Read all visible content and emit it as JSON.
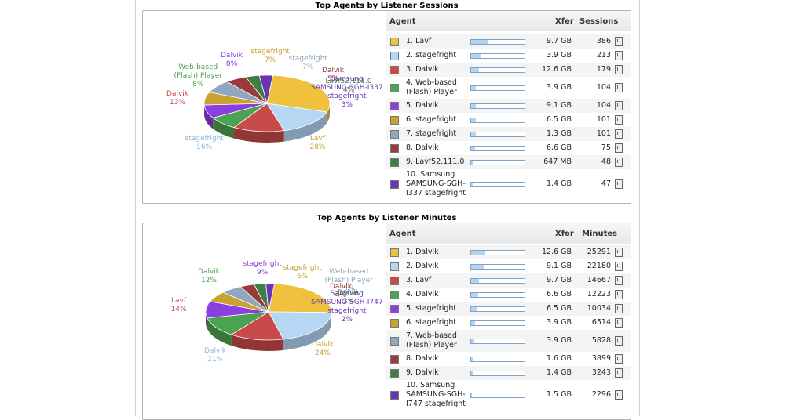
{
  "colors": {
    "yellow": "#f0c13d",
    "lightblue": "#b6d7f4",
    "red": "#c94a4a",
    "green": "#4ca34f",
    "purple": "#8a3fe0",
    "gold": "#c9a232",
    "steel": "#8fa7bf",
    "maroon": "#9b3a3a",
    "darkgreen": "#3e7f41",
    "violet": "#6a35b5"
  },
  "chart_data": [
    {
      "type": "pie",
      "title": "Top Agents by Listener Sessions",
      "headers": {
        "agent": "Agent",
        "xfer": "Xfer",
        "value": "Sessions"
      },
      "slices": [
        {
          "rank": "1. Lavf",
          "color": "#f0c13d",
          "xfer": "9.7 GB",
          "value": 386,
          "bar": 0.31,
          "pie_label": "Lavf",
          "pie_pct": "28%"
        },
        {
          "rank": "2. stagefright",
          "color": "#b6d7f4",
          "xfer": "3.9 GB",
          "value": 213,
          "bar": 0.17,
          "pie_label": "stagefright",
          "pie_pct": "16%"
        },
        {
          "rank": "3. Dalvik",
          "color": "#c94a4a",
          "xfer": "12.6 GB",
          "value": 179,
          "bar": 0.15,
          "pie_label": "Dalvik",
          "pie_pct": "13%"
        },
        {
          "rank": "4. Web-based (Flash) Player",
          "color": "#4ca34f",
          "xfer": "3.9 GB",
          "value": 104,
          "bar": 0.09,
          "pie_label": "Web-based (Flash) Player",
          "pie_pct": "8%"
        },
        {
          "rank": "5. Dalvik",
          "color": "#8a3fe0",
          "xfer": "9.1 GB",
          "value": 104,
          "bar": 0.09,
          "pie_label": "Dalvik",
          "pie_pct": "8%"
        },
        {
          "rank": "6. stagefright",
          "color": "#c9a232",
          "xfer": "6.5 GB",
          "value": 101,
          "bar": 0.09,
          "pie_label": "stagefright",
          "pie_pct": "7%"
        },
        {
          "rank": "7. stagefright",
          "color": "#8fa7bf",
          "xfer": "1.3 GB",
          "value": 101,
          "bar": 0.09,
          "pie_label": "stagefright",
          "pie_pct": "7%"
        },
        {
          "rank": "8. Dalvik",
          "color": "#9b3a3a",
          "xfer": "6.6 GB",
          "value": 75,
          "bar": 0.07,
          "pie_label": "Dalvik",
          "pie_pct": "5%"
        },
        {
          "rank": "9. Lavf52.111.0",
          "color": "#3e7f41",
          "xfer": "647 MB",
          "value": 48,
          "bar": 0.04,
          "pie_label": "Lavf52.111.0",
          "pie_pct": "4%"
        },
        {
          "rank": "10. Samsung SAMSUNG-SGH-I337 stagefright",
          "color": "#6a35b5",
          "xfer": "1.4 GB",
          "value": 47,
          "bar": 0.04,
          "pie_label": "Samsung SAMSUNG-SGH-I337 stagefright",
          "pie_pct": "3%"
        }
      ]
    },
    {
      "type": "pie",
      "title": "Top Agents by Listener Minutes",
      "headers": {
        "agent": "Agent",
        "xfer": "Xfer",
        "value": "Minutes"
      },
      "slices": [
        {
          "rank": "1. Dalvik",
          "color": "#f0c13d",
          "xfer": "12.6 GB",
          "value": 25291,
          "bar": 0.26,
          "pie_label": "Dalvik",
          "pie_pct": "24%"
        },
        {
          "rank": "2. Dalvik",
          "color": "#b6d7f4",
          "xfer": "9.1 GB",
          "value": 22180,
          "bar": 0.23,
          "pie_label": "Dalvik",
          "pie_pct": "21%"
        },
        {
          "rank": "3. Lavf",
          "color": "#c94a4a",
          "xfer": "9.7 GB",
          "value": 14667,
          "bar": 0.15,
          "pie_label": "Lavf",
          "pie_pct": "14%"
        },
        {
          "rank": "4. Dalvik",
          "color": "#4ca34f",
          "xfer": "6.6 GB",
          "value": 12223,
          "bar": 0.13,
          "pie_label": "Dalvik",
          "pie_pct": "12%"
        },
        {
          "rank": "5. stagefright",
          "color": "#8a3fe0",
          "xfer": "6.5 GB",
          "value": 10034,
          "bar": 0.1,
          "pie_label": "stagefright",
          "pie_pct": "9%"
        },
        {
          "rank": "6. stagefright",
          "color": "#c9a232",
          "xfer": "3.9 GB",
          "value": 6514,
          "bar": 0.07,
          "pie_label": "stagefright",
          "pie_pct": "6%"
        },
        {
          "rank": "7. Web-based (Flash) Player",
          "color": "#8fa7bf",
          "xfer": "3.9 GB",
          "value": 5828,
          "bar": 0.06,
          "pie_label": "Web-based (Flash) Player",
          "pie_pct": "5%"
        },
        {
          "rank": "8. Dalvik",
          "color": "#9b3a3a",
          "xfer": "1.6 GB",
          "value": 3899,
          "bar": 0.04,
          "pie_label": "Dalvik",
          "pie_pct": "4%"
        },
        {
          "rank": "9. Dalvik",
          "color": "#3e7f41",
          "xfer": "1.4 GB",
          "value": 3243,
          "bar": 0.03,
          "pie_label": "Dalvik",
          "pie_pct": "3%"
        },
        {
          "rank": "10. Samsung SAMSUNG-SGH-I747 stagefright",
          "color": "#6a35b5",
          "xfer": "1.5 GB",
          "value": 2296,
          "bar": 0.02,
          "pie_label": "Samsung SAMSUNG-SGH-I747 stagefright",
          "pie_pct": "2%"
        }
      ]
    }
  ]
}
